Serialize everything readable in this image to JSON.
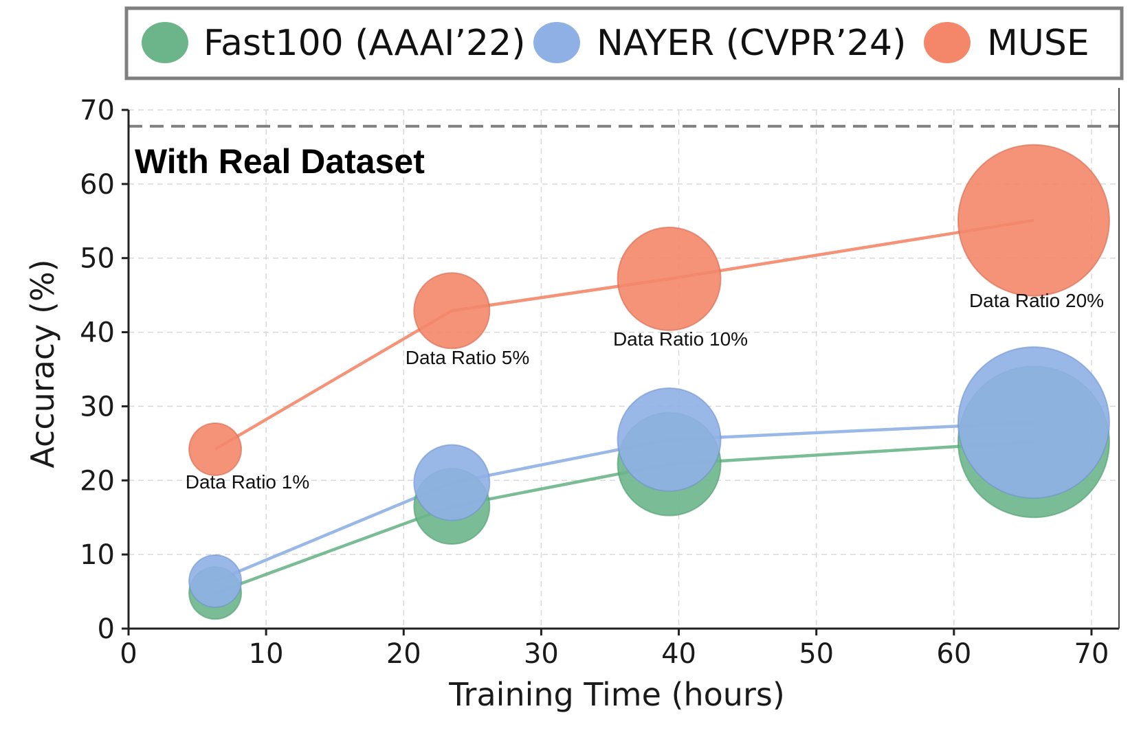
{
  "chart_data": {
    "type": "scatter",
    "title": "",
    "xlabel": "Training Time (hours)",
    "ylabel": "Accuracy (%)",
    "xlim": [
      0,
      72
    ],
    "ylim": [
      0,
      70
    ],
    "xticks": [
      "0",
      "10",
      "20",
      "30",
      "40",
      "50",
      "60",
      "70"
    ],
    "yticks": [
      "0",
      "10",
      "20",
      "30",
      "40",
      "50",
      "60",
      "70"
    ],
    "grid": true,
    "legend_position": "top",
    "reference_line": {
      "label": "With Real Dataset",
      "y": 67.8
    },
    "x": [
      6.3,
      23.5,
      39.3,
      65.8
    ],
    "series": [
      {
        "name": "Fast100 (AAAI’22)",
        "color": "#6cb58a",
        "values": [
          4.8,
          16.5,
          22.2,
          25.2
        ],
        "size_rank": [
          1,
          2,
          3,
          4
        ]
      },
      {
        "name": "NAYER (CVPR’24)",
        "color": "#8fb0e4",
        "values": [
          6.4,
          19.7,
          25.5,
          27.8
        ],
        "size_rank": [
          1,
          2,
          3,
          4
        ]
      },
      {
        "name": "MUSE",
        "color": "#f4876a",
        "values": [
          24.2,
          42.9,
          47.2,
          55.1
        ],
        "size_rank": [
          1,
          2,
          3,
          4
        ]
      }
    ],
    "annotations": [
      "Data Ratio 1%",
      "Data Ratio 5%",
      "Data Ratio 10%",
      "Data Ratio 20%"
    ]
  }
}
